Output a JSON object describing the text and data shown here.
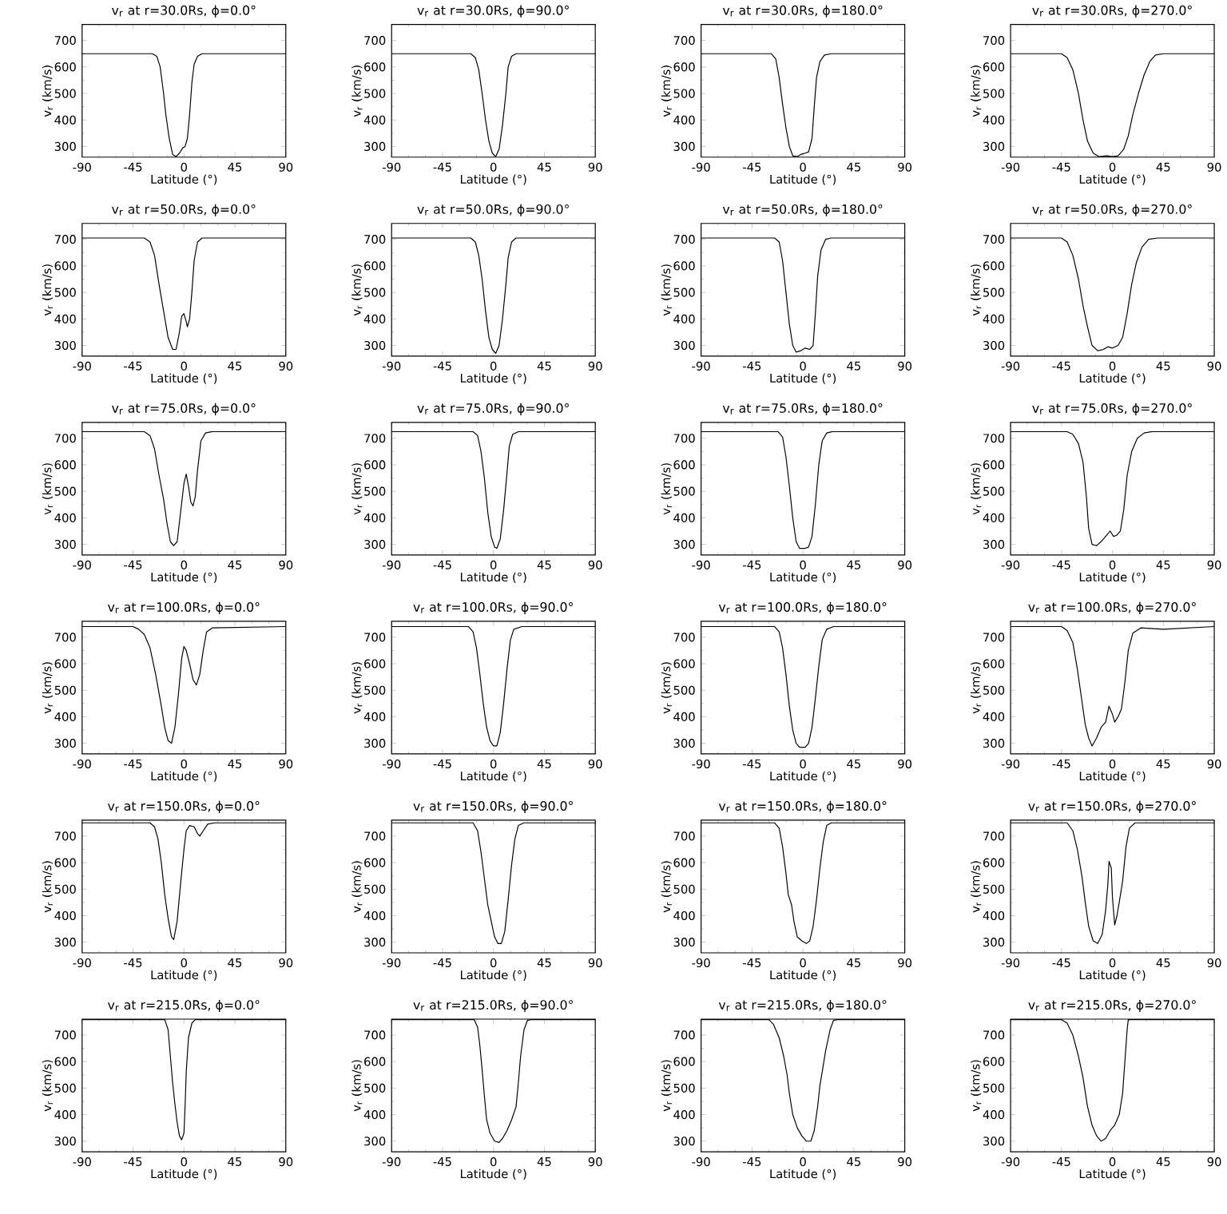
{
  "chart_data": [
    {
      "type": "line",
      "title": "v$_{r}$ at r=30.0Rs, ϕ=0.0°",
      "xlabel": "Latitude (°)",
      "ylabel": "v$_{r}$ (km/s)",
      "color": "#000000",
      "xlim": [
        -90,
        90
      ],
      "ylim": [
        260,
        760
      ],
      "xticks": [
        -90,
        -45,
        0,
        45,
        90
      ],
      "yticks": [
        300,
        400,
        500,
        600,
        700
      ],
      "x": [
        -90,
        -28,
        -24,
        -21,
        -18,
        -16,
        -13,
        -10,
        -7,
        -4,
        -1,
        1,
        3,
        5,
        7,
        9,
        12,
        16,
        90
      ],
      "values": [
        650,
        650,
        640,
        600,
        500,
        420,
        330,
        270,
        262,
        275,
        295,
        300,
        330,
        420,
        540,
        610,
        640,
        650,
        650
      ]
    },
    {
      "type": "line",
      "title": "v$_{r}$ at r=30.0Rs, ϕ=90.0°",
      "xlabel": "Latitude (°)",
      "ylabel": "v$_{r}$ (km/s)",
      "color": "#000000",
      "xlim": [
        -90,
        90
      ],
      "ylim": [
        260,
        760
      ],
      "xticks": [
        -90,
        -45,
        0,
        45,
        90
      ],
      "yticks": [
        300,
        400,
        500,
        600,
        700
      ],
      "x": [
        -90,
        -20,
        -16,
        -13,
        -10,
        -7,
        -4,
        -1,
        2,
        5,
        8,
        11,
        13,
        16,
        20,
        90
      ],
      "values": [
        650,
        650,
        635,
        590,
        500,
        400,
        320,
        275,
        262,
        290,
        380,
        500,
        600,
        640,
        650,
        650
      ]
    },
    {
      "type": "line",
      "title": "v$_{r}$ at r=30.0Rs, ϕ=180.0°",
      "xlabel": "Latitude (°)",
      "ylabel": "v$_{r}$ (km/s)",
      "color": "#000000",
      "xlim": [
        -90,
        90
      ],
      "ylim": [
        260,
        760
      ],
      "xticks": [
        -90,
        -45,
        0,
        45,
        90
      ],
      "yticks": [
        300,
        400,
        500,
        600,
        700
      ],
      "x": [
        -90,
        -28,
        -24,
        -21,
        -18,
        -15,
        -12,
        -9,
        -5,
        -2,
        2,
        5,
        8,
        10,
        12,
        15,
        19,
        25,
        90
      ],
      "values": [
        650,
        650,
        630,
        560,
        460,
        370,
        300,
        265,
        262,
        270,
        275,
        280,
        330,
        450,
        560,
        620,
        645,
        650,
        650
      ]
    },
    {
      "type": "line",
      "title": "v$_{r}$ at r=30.0Rs, ϕ=270.0°",
      "xlabel": "Latitude (°)",
      "ylabel": "v$_{r}$ (km/s)",
      "color": "#000000",
      "xlim": [
        -90,
        90
      ],
      "ylim": [
        260,
        760
      ],
      "xticks": [
        -90,
        -45,
        0,
        45,
        90
      ],
      "yticks": [
        300,
        400,
        500,
        600,
        700
      ],
      "x": [
        -90,
        -45,
        -40,
        -35,
        -30,
        -26,
        -22,
        -17,
        -12,
        -5,
        0,
        5,
        10,
        14,
        18,
        23,
        28,
        33,
        38,
        45,
        90
      ],
      "values": [
        650,
        650,
        635,
        590,
        500,
        400,
        320,
        275,
        262,
        265,
        262,
        265,
        290,
        340,
        420,
        500,
        570,
        620,
        645,
        650,
        650
      ]
    },
    {
      "type": "line",
      "title": "v$_{r}$ at r=50.0Rs, ϕ=0.0°",
      "xlabel": "Latitude (°)",
      "ylabel": "v$_{r}$ (km/s)",
      "color": "#000000",
      "xlim": [
        -90,
        90
      ],
      "ylim": [
        260,
        760
      ],
      "xticks": [
        -90,
        -45,
        0,
        45,
        90
      ],
      "yticks": [
        300,
        400,
        500,
        600,
        700
      ],
      "x": [
        -90,
        -35,
        -30,
        -26,
        -22,
        -18,
        -14,
        -10,
        -7,
        -4,
        -2,
        0,
        2,
        3,
        5,
        7,
        9,
        12,
        16,
        90
      ],
      "values": [
        705,
        705,
        690,
        640,
        530,
        430,
        330,
        285,
        285,
        350,
        410,
        420,
        390,
        370,
        400,
        500,
        620,
        690,
        705,
        705
      ]
    },
    {
      "type": "line",
      "title": "v$_{r}$ at r=50.0Rs, ϕ=90.0°",
      "xlabel": "Latitude (°)",
      "ylabel": "v$_{r}$ (km/s)",
      "color": "#000000",
      "xlim": [
        -90,
        90
      ],
      "ylim": [
        260,
        760
      ],
      "xticks": [
        -90,
        -45,
        0,
        45,
        90
      ],
      "yticks": [
        300,
        400,
        500,
        600,
        700
      ],
      "x": [
        -90,
        -20,
        -16,
        -13,
        -10,
        -7,
        -4,
        -1,
        2,
        5,
        8,
        11,
        13,
        16,
        20,
        90
      ],
      "values": [
        705,
        705,
        690,
        640,
        550,
        430,
        330,
        285,
        270,
        300,
        400,
        530,
        630,
        690,
        705,
        705
      ]
    },
    {
      "type": "line",
      "title": "v$_{r}$ at r=50.0Rs, ϕ=180.0°",
      "xlabel": "Latitude (°)",
      "ylabel": "v$_{r}$ (km/s)",
      "color": "#000000",
      "xlim": [
        -90,
        90
      ],
      "ylim": [
        260,
        760
      ],
      "xticks": [
        -90,
        -45,
        0,
        45,
        90
      ],
      "yticks": [
        300,
        400,
        500,
        600,
        700
      ],
      "x": [
        -90,
        -25,
        -21,
        -18,
        -15,
        -12,
        -9,
        -6,
        -2,
        2,
        6,
        9,
        11,
        13,
        16,
        20,
        25,
        90
      ],
      "values": [
        705,
        705,
        690,
        620,
        500,
        380,
        300,
        275,
        280,
        290,
        285,
        300,
        420,
        560,
        660,
        700,
        705,
        705
      ]
    },
    {
      "type": "line",
      "title": "v$_{r}$ at r=50.0Rs, ϕ=270.0°",
      "xlabel": "Latitude (°)",
      "ylabel": "v$_{r}$ (km/s)",
      "color": "#000000",
      "xlim": [
        -90,
        90
      ],
      "ylim": [
        260,
        760
      ],
      "xticks": [
        -90,
        -45,
        0,
        45,
        90
      ],
      "yticks": [
        300,
        400,
        500,
        600,
        700
      ],
      "x": [
        -90,
        -45,
        -40,
        -35,
        -30,
        -26,
        -22,
        -18,
        -13,
        -8,
        -4,
        0,
        5,
        9,
        13,
        17,
        21,
        26,
        32,
        40,
        90
      ],
      "values": [
        705,
        705,
        690,
        640,
        550,
        450,
        370,
        300,
        280,
        285,
        295,
        290,
        300,
        330,
        420,
        530,
        610,
        670,
        700,
        705,
        705
      ]
    },
    {
      "type": "line",
      "title": "v$_{r}$ at r=75.0Rs, ϕ=0.0°",
      "xlabel": "Latitude (°)",
      "ylabel": "v$_{r}$ (km/s)",
      "color": "#000000",
      "xlim": [
        -90,
        90
      ],
      "ylim": [
        260,
        760
      ],
      "xticks": [
        -90,
        -45,
        0,
        45,
        90
      ],
      "yticks": [
        300,
        400,
        500,
        600,
        700
      ],
      "x": [
        -90,
        -35,
        -30,
        -26,
        -22,
        -18,
        -15,
        -12,
        -9,
        -6,
        -3,
        0,
        2,
        4,
        6,
        8,
        10,
        12,
        15,
        19,
        25,
        90
      ],
      "values": [
        725,
        725,
        710,
        660,
        560,
        470,
        380,
        310,
        295,
        310,
        420,
        530,
        565,
        520,
        460,
        445,
        480,
        580,
        690,
        720,
        725,
        725
      ]
    },
    {
      "type": "line",
      "title": "v$_{r}$ at r=75.0Rs, ϕ=90.0°",
      "xlabel": "Latitude (°)",
      "ylabel": "v$_{r}$ (km/s)",
      "color": "#000000",
      "xlim": [
        -90,
        90
      ],
      "ylim": [
        260,
        760
      ],
      "xticks": [
        -90,
        -45,
        0,
        45,
        90
      ],
      "yticks": [
        300,
        400,
        500,
        600,
        700
      ],
      "x": [
        -90,
        -18,
        -14,
        -11,
        -8,
        -5,
        -2,
        1,
        3,
        6,
        9,
        12,
        14,
        17,
        22,
        90
      ],
      "values": [
        725,
        725,
        710,
        650,
        550,
        420,
        330,
        290,
        285,
        320,
        430,
        570,
        670,
        715,
        725,
        725
      ]
    },
    {
      "type": "line",
      "title": "v$_{r}$ at r=75.0Rs, ϕ=180.0°",
      "xlabel": "Latitude (°)",
      "ylabel": "v$_{r}$ (km/s)",
      "color": "#000000",
      "xlim": [
        -90,
        90
      ],
      "ylim": [
        260,
        760
      ],
      "xticks": [
        -90,
        -45,
        0,
        45,
        90
      ],
      "yticks": [
        300,
        400,
        500,
        600,
        700
      ],
      "x": [
        -90,
        -22,
        -18,
        -15,
        -12,
        -9,
        -6,
        -3,
        2,
        5,
        8,
        11,
        14,
        17,
        21,
        26,
        90
      ],
      "values": [
        725,
        725,
        705,
        630,
        520,
        400,
        310,
        285,
        285,
        290,
        330,
        450,
        600,
        690,
        720,
        725,
        725
      ]
    },
    {
      "type": "line",
      "title": "v$_{r}$ at r=75.0Rs, ϕ=270.0°",
      "xlabel": "Latitude (°)",
      "ylabel": "v$_{r}$ (km/s)",
      "color": "#000000",
      "xlim": [
        -90,
        90
      ],
      "ylim": [
        260,
        760
      ],
      "xticks": [
        -90,
        -45,
        0,
        45,
        90
      ],
      "yticks": [
        300,
        400,
        500,
        600,
        700
      ],
      "x": [
        -90,
        -40,
        -35,
        -30,
        -26,
        -23,
        -21,
        -18,
        -14,
        -9,
        -5,
        -2,
        1,
        4,
        7,
        10,
        13,
        17,
        22,
        28,
        35,
        90
      ],
      "values": [
        725,
        725,
        715,
        680,
        610,
        480,
        360,
        300,
        295,
        315,
        335,
        350,
        330,
        335,
        350,
        430,
        560,
        650,
        700,
        720,
        725,
        725
      ]
    },
    {
      "type": "line",
      "title": "v$_{r}$ at r=100.0Rs, ϕ=0.0°",
      "xlabel": "Latitude (°)",
      "ylabel": "v$_{r}$ (km/s)",
      "color": "#000000",
      "xlim": [
        -90,
        90
      ],
      "ylim": [
        260,
        760
      ],
      "xticks": [
        -90,
        -45,
        0,
        45,
        90
      ],
      "yticks": [
        300,
        400,
        500,
        600,
        700
      ],
      "x": [
        -90,
        -45,
        -40,
        -35,
        -30,
        -25,
        -20,
        -17,
        -14,
        -11,
        -8,
        -5,
        -2,
        0,
        2,
        5,
        8,
        11,
        14,
        17,
        20,
        25,
        90
      ],
      "values": [
        740,
        740,
        730,
        710,
        660,
        560,
        440,
        360,
        310,
        300,
        360,
        480,
        620,
        665,
        650,
        600,
        540,
        520,
        560,
        650,
        720,
        735,
        740
      ]
    },
    {
      "type": "line",
      "title": "v$_{r}$ at r=100.0Rs, ϕ=90.0°",
      "xlabel": "Latitude (°)",
      "ylabel": "v$_{r}$ (km/s)",
      "color": "#000000",
      "xlim": [
        -90,
        90
      ],
      "ylim": [
        260,
        760
      ],
      "xticks": [
        -90,
        -45,
        0,
        45,
        90
      ],
      "yticks": [
        300,
        400,
        500,
        600,
        700
      ],
      "x": [
        -90,
        -22,
        -18,
        -15,
        -12,
        -9,
        -6,
        -3,
        0,
        3,
        6,
        9,
        12,
        15,
        18,
        25,
        90
      ],
      "values": [
        740,
        740,
        720,
        660,
        560,
        450,
        360,
        310,
        290,
        290,
        340,
        450,
        580,
        690,
        730,
        740,
        740
      ]
    },
    {
      "type": "line",
      "title": "v$_{r}$ at r=100.0Rs, ϕ=180.0°",
      "xlabel": "Latitude (°)",
      "ylabel": "v$_{r}$ (km/s)",
      "color": "#000000",
      "xlim": [
        -90,
        90
      ],
      "ylim": [
        260,
        760
      ],
      "xticks": [
        -90,
        -45,
        0,
        45,
        90
      ],
      "yticks": [
        300,
        400,
        500,
        600,
        700
      ],
      "x": [
        -90,
        -25,
        -21,
        -18,
        -15,
        -12,
        -9,
        -6,
        -3,
        2,
        5,
        8,
        11,
        14,
        17,
        21,
        27,
        90
      ],
      "values": [
        740,
        740,
        720,
        660,
        560,
        440,
        350,
        300,
        285,
        285,
        300,
        360,
        470,
        590,
        690,
        730,
        740,
        740
      ]
    },
    {
      "type": "line",
      "title": "v$_{r}$ at r=100.0Rs, ϕ=270.0°",
      "xlabel": "Latitude (°)",
      "ylabel": "v$_{r}$ (km/s)",
      "color": "#000000",
      "xlim": [
        -90,
        90
      ],
      "ylim": [
        260,
        760
      ],
      "xticks": [
        -90,
        -45,
        0,
        45,
        90
      ],
      "yticks": [
        300,
        400,
        500,
        600,
        700
      ],
      "x": [
        -90,
        -45,
        -40,
        -35,
        -31,
        -27,
        -24,
        -21,
        -18,
        -14,
        -10,
        -6,
        -3,
        0,
        2,
        5,
        8,
        11,
        14,
        18,
        25,
        45,
        90
      ],
      "values": [
        740,
        740,
        725,
        680,
        580,
        460,
        370,
        320,
        290,
        320,
        360,
        380,
        440,
        410,
        380,
        400,
        430,
        530,
        650,
        715,
        735,
        730,
        740
      ]
    },
    {
      "type": "line",
      "title": "v$_{r}$ at r=150.0Rs, ϕ=0.0°",
      "xlabel": "Latitude (°)",
      "ylabel": "v$_{r}$ (km/s)",
      "color": "#000000",
      "xlim": [
        -90,
        90
      ],
      "ylim": [
        260,
        760
      ],
      "xticks": [
        -90,
        -45,
        0,
        45,
        90
      ],
      "yticks": [
        300,
        400,
        500,
        600,
        700
      ],
      "x": [
        -90,
        -30,
        -26,
        -23,
        -20,
        -17,
        -14,
        -11,
        -9,
        -6,
        -3,
        0,
        2,
        5,
        9,
        12,
        14,
        17,
        21,
        27,
        90
      ],
      "values": [
        750,
        750,
        735,
        690,
        600,
        480,
        390,
        320,
        310,
        380,
        520,
        650,
        720,
        740,
        735,
        710,
        700,
        720,
        745,
        750,
        750
      ]
    },
    {
      "type": "line",
      "title": "v$_{r}$ at r=150.0Rs, ϕ=90.0°",
      "xlabel": "Latitude (°)",
      "ylabel": "v$_{r}$ (km/s)",
      "color": "#000000",
      "xlim": [
        -90,
        90
      ],
      "ylim": [
        260,
        760
      ],
      "xticks": [
        -90,
        -45,
        0,
        45,
        90
      ],
      "yticks": [
        300,
        400,
        500,
        600,
        700
      ],
      "x": [
        -90,
        -18,
        -14,
        -11,
        -8,
        -5,
        -2,
        1,
        4,
        7,
        10,
        13,
        16,
        19,
        22,
        27,
        90
      ],
      "values": [
        750,
        750,
        720,
        640,
        540,
        440,
        380,
        320,
        295,
        295,
        340,
        460,
        590,
        690,
        740,
        750,
        750
      ]
    },
    {
      "type": "line",
      "title": "v$_{r}$ at r=150.0Rs, ϕ=180.0°",
      "xlabel": "Latitude (°)",
      "ylabel": "v$_{r}$ (km/s)",
      "color": "#000000",
      "xlim": [
        -90,
        90
      ],
      "ylim": [
        260,
        760
      ],
      "xticks": [
        -90,
        -45,
        0,
        45,
        90
      ],
      "yticks": [
        300,
        400,
        500,
        600,
        700
      ],
      "x": [
        -90,
        -25,
        -21,
        -18,
        -15,
        -13,
        -10,
        -8,
        -5,
        -1,
        3,
        6,
        9,
        12,
        15,
        18,
        21,
        25,
        90
      ],
      "values": [
        750,
        750,
        730,
        660,
        560,
        480,
        440,
        380,
        320,
        305,
        295,
        305,
        360,
        460,
        580,
        680,
        740,
        750,
        750
      ]
    },
    {
      "type": "line",
      "title": "v$_{r}$ at r=150.0Rs, ϕ=270.0°",
      "xlabel": "Latitude (°)",
      "ylabel": "v$_{r}$ (km/s)",
      "color": "#000000",
      "xlim": [
        -90,
        90
      ],
      "ylim": [
        260,
        760
      ],
      "xticks": [
        -90,
        -45,
        0,
        45,
        90
      ],
      "yticks": [
        300,
        400,
        500,
        600,
        700
      ],
      "x": [
        -90,
        -40,
        -35,
        -31,
        -27,
        -24,
        -21,
        -17,
        -13,
        -9,
        -6,
        -4,
        -3,
        -1,
        0,
        2,
        4,
        6,
        9,
        12,
        15,
        20,
        90
      ],
      "values": [
        750,
        750,
        720,
        650,
        550,
        450,
        360,
        305,
        295,
        330,
        420,
        520,
        605,
        580,
        470,
        365,
        400,
        450,
        530,
        660,
        730,
        750,
        750
      ]
    },
    {
      "type": "line",
      "title": "v$_{r}$ at r=215.0Rs, ϕ=0.0°",
      "xlabel": "Latitude (°)",
      "ylabel": "v$_{r}$ (km/s)",
      "color": "#000000",
      "xlim": [
        -90,
        90
      ],
      "ylim": [
        260,
        760
      ],
      "xticks": [
        -90,
        -45,
        0,
        45,
        90
      ],
      "yticks": [
        300,
        400,
        500,
        600,
        700
      ],
      "x": [
        -90,
        -17,
        -14,
        -12,
        -10,
        -8,
        -6,
        -4,
        -2,
        0,
        1,
        2,
        4,
        7,
        10,
        90
      ],
      "values": [
        758,
        758,
        720,
        620,
        520,
        440,
        370,
        320,
        305,
        330,
        430,
        560,
        690,
        745,
        758,
        758
      ]
    },
    {
      "type": "line",
      "title": "v$_{r}$ at r=215.0Rs, ϕ=90.0°",
      "xlabel": "Latitude (°)",
      "ylabel": "v$_{r}$ (km/s)",
      "color": "#000000",
      "xlim": [
        -90,
        90
      ],
      "ylim": [
        260,
        760
      ],
      "xticks": [
        -90,
        -45,
        0,
        45,
        90
      ],
      "yticks": [
        300,
        400,
        500,
        600,
        700
      ],
      "x": [
        -90,
        -17,
        -14,
        -12,
        -10,
        -8,
        -6,
        -3,
        1,
        5,
        8,
        12,
        16,
        20,
        22,
        24,
        27,
        30,
        33,
        90
      ],
      "values": [
        758,
        758,
        730,
        660,
        570,
        470,
        380,
        330,
        300,
        295,
        310,
        340,
        380,
        430,
        520,
        620,
        720,
        755,
        758,
        758
      ]
    },
    {
      "type": "line",
      "title": "v$_{r}$ at r=215.0Rs, ϕ=180.0°",
      "xlabel": "Latitude (°)",
      "ylabel": "v$_{r}$ (km/s)",
      "color": "#000000",
      "xlim": [
        -90,
        90
      ],
      "ylim": [
        260,
        760
      ],
      "xticks": [
        -90,
        -45,
        0,
        45,
        90
      ],
      "yticks": [
        300,
        400,
        500,
        600,
        700
      ],
      "x": [
        -90,
        -30,
        -26,
        -21,
        -17,
        -14,
        -12,
        -9,
        -5,
        -1,
        3,
        7,
        10,
        13,
        15,
        17,
        20,
        24,
        27,
        30,
        90
      ],
      "values": [
        758,
        758,
        740,
        690,
        620,
        550,
        480,
        400,
        350,
        320,
        300,
        300,
        340,
        430,
        510,
        560,
        640,
        720,
        755,
        758,
        758
      ]
    },
    {
      "type": "line",
      "title": "v$_{r}$ at r=215.0Rs, ϕ=270.0°",
      "xlabel": "Latitude (°)",
      "ylabel": "v$_{r}$ (km/s)",
      "color": "#000000",
      "xlim": [
        -90,
        90
      ],
      "ylim": [
        260,
        760
      ],
      "xticks": [
        -90,
        -45,
        0,
        45,
        90
      ],
      "yticks": [
        300,
        400,
        500,
        600,
        700
      ],
      "x": [
        -90,
        -45,
        -40,
        -35,
        -30,
        -26,
        -22,
        -18,
        -14,
        -10,
        -6,
        -2,
        2,
        6,
        9,
        11,
        13,
        14,
        90
      ],
      "values": [
        758,
        758,
        745,
        700,
        620,
        540,
        430,
        360,
        320,
        300,
        310,
        340,
        360,
        400,
        480,
        600,
        720,
        758,
        758
      ]
    }
  ]
}
